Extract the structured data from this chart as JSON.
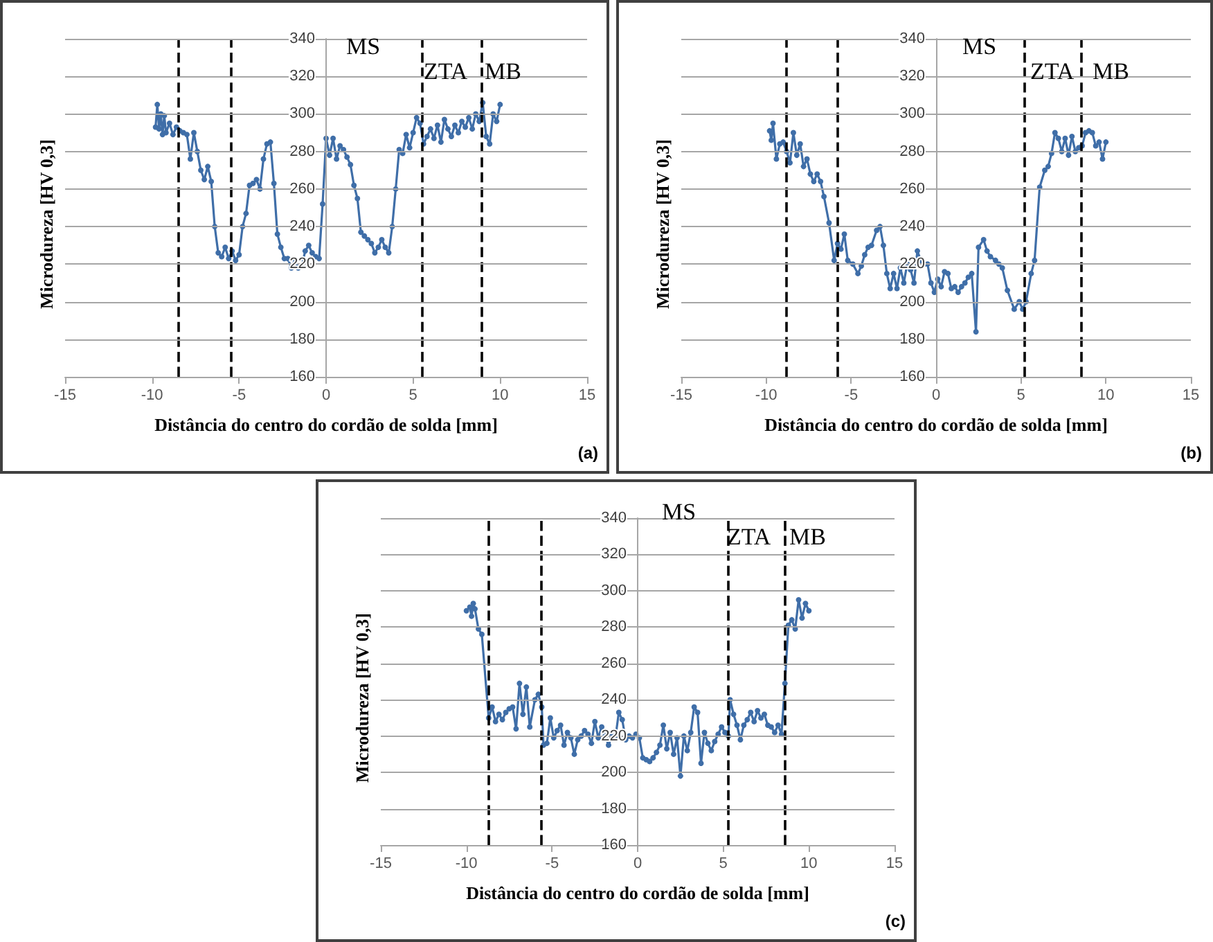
{
  "chart_data": [
    {
      "type": "line",
      "xlabel": "Distância do centro do cordão de solda [mm]",
      "ylabel": "Microdureza [HV 0,3]",
      "xlim": [
        -15,
        15
      ],
      "xticks": [
        -15,
        -10,
        -5,
        0,
        5,
        10,
        15
      ],
      "ylim": [
        160,
        340
      ],
      "yticks": [
        160,
        180,
        200,
        220,
        240,
        260,
        280,
        300,
        320,
        340
      ],
      "grid": "y",
      "marker": "circle",
      "line_style": "solid",
      "series": [
        {
          "color": "#3f6ea8",
          "x": [
            -9.8,
            -9.7,
            -9.6,
            -9.5,
            -9.4,
            -9.3,
            -9.2,
            -9.0,
            -8.8,
            -8.6,
            -8.4,
            -8.2,
            -8.0,
            -7.8,
            -7.6,
            -7.4,
            -7.2,
            -7.0,
            -6.8,
            -6.6,
            -6.4,
            -6.2,
            -6.0,
            -5.8,
            -5.6,
            -5.4,
            -5.2,
            -5.0,
            -4.8,
            -4.6,
            -4.4,
            -4.2,
            -4.0,
            -3.8,
            -3.6,
            -3.4,
            -3.2,
            -3.0,
            -2.8,
            -2.6,
            -2.4,
            -2.2,
            -2.0,
            -1.8,
            -1.6,
            -1.4,
            -1.2,
            -1.0,
            -0.8,
            -0.6,
            -0.4,
            -0.2,
            0.0,
            0.2,
            0.4,
            0.6,
            0.8,
            1.0,
            1.2,
            1.4,
            1.6,
            1.8,
            2.0,
            2.2,
            2.4,
            2.6,
            2.8,
            3.0,
            3.2,
            3.4,
            3.6,
            3.8,
            4.0,
            4.2,
            4.4,
            4.6,
            4.8,
            5.0,
            5.2,
            5.4,
            5.6,
            5.8,
            6.0,
            6.2,
            6.4,
            6.6,
            6.8,
            7.0,
            7.2,
            7.4,
            7.6,
            7.8,
            8.0,
            8.2,
            8.4,
            8.6,
            8.8,
            9.0,
            9.2,
            9.4,
            9.6,
            9.8,
            10.0
          ],
          "values": [
            293,
            305,
            292,
            300,
            289,
            299,
            290,
            295,
            289,
            293,
            291,
            290,
            289,
            276,
            290,
            280,
            270,
            265,
            272,
            264,
            240,
            226,
            224,
            229,
            223,
            227,
            222,
            225,
            240,
            247,
            262,
            263,
            265,
            260,
            276,
            284,
            285,
            263,
            236,
            229,
            223,
            223,
            218,
            222,
            218,
            219,
            227,
            230,
            226,
            224,
            223,
            252,
            287,
            278,
            287,
            276,
            283,
            281,
            277,
            273,
            262,
            255,
            237,
            235,
            233,
            231,
            226,
            229,
            233,
            229,
            226,
            240,
            260,
            281,
            279,
            289,
            282,
            290,
            298,
            295,
            284,
            288,
            292,
            287,
            294,
            285,
            297,
            292,
            288,
            294,
            290,
            296,
            293,
            298,
            292,
            300,
            296,
            306,
            288,
            284,
            300,
            296,
            305
          ]
        }
      ],
      "ref_lines": [
        {
          "axis": "x",
          "value": -8.5,
          "color": "#000000",
          "line_style": "dashed"
        },
        {
          "axis": "x",
          "value": -5.5,
          "color": "#000000",
          "line_style": "dashed"
        },
        {
          "axis": "x",
          "value": 5.5,
          "color": "#000000",
          "line_style": "dashed"
        },
        {
          "axis": "x",
          "value": 8.9,
          "color": "#000000",
          "line_style": "dashed"
        }
      ],
      "annotations": [
        "MS",
        "ZTA",
        "MB",
        "(a)"
      ]
    },
    {
      "type": "line",
      "xlabel": "Distância do centro do cordão de solda [mm]",
      "ylabel": "Microdureza [HV 0,3]",
      "xlim": [
        -15,
        15
      ],
      "xticks": [
        -15,
        -10,
        -5,
        0,
        5,
        10,
        15
      ],
      "ylim": [
        160,
        340
      ],
      "yticks": [
        160,
        180,
        200,
        220,
        240,
        260,
        280,
        300,
        320,
        340
      ],
      "grid": "y",
      "marker": "circle",
      "line_style": "solid",
      "series": [
        {
          "color": "#3f6ea8",
          "x": [
            -9.8,
            -9.7,
            -9.6,
            -9.4,
            -9.2,
            -9.0,
            -8.8,
            -8.6,
            -8.4,
            -8.2,
            -8.0,
            -7.8,
            -7.6,
            -7.4,
            -7.2,
            -7.0,
            -6.8,
            -6.6,
            -6.3,
            -6.0,
            -5.8,
            -5.6,
            -5.4,
            -5.2,
            -4.9,
            -4.6,
            -4.4,
            -4.2,
            -4.0,
            -3.8,
            -3.5,
            -3.3,
            -3.1,
            -2.9,
            -2.7,
            -2.5,
            -2.3,
            -2.1,
            -1.9,
            -1.7,
            -1.5,
            -1.3,
            -1.1,
            -0.9,
            -0.7,
            -0.5,
            -0.3,
            -0.1,
            0.1,
            0.3,
            0.5,
            0.7,
            0.9,
            1.1,
            1.3,
            1.5,
            1.7,
            1.9,
            2.1,
            2.35,
            2.5,
            2.8,
            3.0,
            3.2,
            3.5,
            3.7,
            3.9,
            4.2,
            4.6,
            4.9,
            5.1,
            5.3,
            5.6,
            5.8,
            6.1,
            6.4,
            6.6,
            6.8,
            7.0,
            7.2,
            7.4,
            7.6,
            7.8,
            8.0,
            8.2,
            8.4,
            8.6,
            8.8,
            9.0,
            9.2,
            9.4,
            9.6,
            9.8,
            10.0
          ],
          "values": [
            291,
            286,
            295,
            276,
            284,
            285,
            280,
            274,
            290,
            278,
            284,
            272,
            276,
            268,
            264,
            268,
            264,
            256,
            242,
            222,
            231,
            228,
            236,
            222,
            220,
            215,
            219,
            225,
            229,
            230,
            238,
            240,
            230,
            215,
            207,
            215,
            207,
            218,
            210,
            220,
            217,
            210,
            227,
            222,
            220,
            220,
            210,
            205,
            212,
            208,
            216,
            215,
            207,
            208,
            205,
            208,
            210,
            213,
            215,
            184,
            229,
            233,
            227,
            224,
            222,
            220,
            218,
            206,
            196,
            200,
            196,
            200,
            215,
            222,
            261,
            270,
            272,
            279,
            290,
            287,
            280,
            287,
            278,
            288,
            280,
            282,
            283,
            290,
            291,
            290,
            283,
            285,
            276,
            285
          ]
        }
      ],
      "ref_lines": [
        {
          "axis": "x",
          "value": -8.8,
          "color": "#000000",
          "line_style": "dashed"
        },
        {
          "axis": "x",
          "value": -5.8,
          "color": "#000000",
          "line_style": "dashed"
        },
        {
          "axis": "x",
          "value": 5.2,
          "color": "#000000",
          "line_style": "dashed"
        },
        {
          "axis": "x",
          "value": 8.5,
          "color": "#000000",
          "line_style": "dashed"
        }
      ],
      "annotations": [
        "MS",
        "ZTA",
        "MB",
        "(b)"
      ]
    },
    {
      "type": "line",
      "xlabel": "Distância do centro do cordão de solda [mm]",
      "ylabel": "Microdureza [HV 0,3]",
      "xlim": [
        -15,
        15
      ],
      "xticks": [
        -15,
        -10,
        -5,
        0,
        5,
        10,
        15
      ],
      "ylim": [
        160,
        340
      ],
      "yticks": [
        160,
        180,
        200,
        220,
        240,
        260,
        280,
        300,
        320,
        340
      ],
      "grid": "y",
      "marker": "circle",
      "line_style": "solid",
      "series": [
        {
          "color": "#3f6ea8",
          "x": [
            -10.0,
            -9.8,
            -9.7,
            -9.6,
            -9.5,
            -9.3,
            -9.1,
            -8.7,
            -8.5,
            -8.3,
            -8.1,
            -7.9,
            -7.7,
            -7.5,
            -7.3,
            -7.1,
            -6.9,
            -6.7,
            -6.5,
            -6.3,
            -6.0,
            -5.8,
            -5.6,
            -5.5,
            -5.3,
            -5.1,
            -4.9,
            -4.7,
            -4.5,
            -4.3,
            -4.1,
            -3.9,
            -3.7,
            -3.5,
            -3.3,
            -3.1,
            -2.9,
            -2.7,
            -2.5,
            -2.3,
            -2.1,
            -1.9,
            -1.7,
            -1.5,
            -1.3,
            -1.1,
            -0.9,
            -0.7,
            -0.5,
            -0.3,
            -0.1,
            0.1,
            0.3,
            0.5,
            0.7,
            0.9,
            1.1,
            1.3,
            1.5,
            1.7,
            1.9,
            2.1,
            2.3,
            2.5,
            2.7,
            2.9,
            3.1,
            3.3,
            3.5,
            3.7,
            3.9,
            4.1,
            4.3,
            4.5,
            4.7,
            4.9,
            5.1,
            5.3,
            5.4,
            5.6,
            5.8,
            6.0,
            6.2,
            6.4,
            6.6,
            6.8,
            7.0,
            7.2,
            7.4,
            7.6,
            7.8,
            8.0,
            8.2,
            8.4,
            8.6,
            8.8,
            9.0,
            9.2,
            9.4,
            9.6,
            9.8,
            10.0
          ],
          "values": [
            289,
            291,
            286,
            293,
            290,
            279,
            276,
            230,
            236,
            228,
            232,
            229,
            233,
            235,
            236,
            224,
            249,
            232,
            247,
            225,
            240,
            243,
            236,
            215,
            216,
            230,
            219,
            223,
            226,
            215,
            222,
            219,
            210,
            218,
            220,
            223,
            221,
            216,
            228,
            219,
            225,
            220,
            215,
            220,
            219,
            233,
            229,
            218,
            220,
            219,
            221,
            219,
            208,
            207,
            206,
            208,
            211,
            215,
            226,
            213,
            222,
            210,
            219,
            198,
            220,
            212,
            222,
            236,
            233,
            205,
            222,
            216,
            212,
            217,
            221,
            225,
            222,
            220,
            240,
            232,
            226,
            218,
            226,
            229,
            233,
            228,
            234,
            230,
            232,
            226,
            225,
            222,
            226,
            221,
            249,
            281,
            284,
            279,
            295,
            285,
            293,
            289
          ]
        }
      ],
      "ref_lines": [
        {
          "axis": "x",
          "value": -8.7,
          "color": "#000000",
          "line_style": "dashed"
        },
        {
          "axis": "x",
          "value": -5.6,
          "color": "#000000",
          "line_style": "dashed"
        },
        {
          "axis": "x",
          "value": 5.3,
          "color": "#000000",
          "line_style": "dashed"
        },
        {
          "axis": "x",
          "value": 8.6,
          "color": "#000000",
          "line_style": "dashed"
        }
      ],
      "annotations": [
        "MS",
        "ZTA",
        "MB",
        "(c)"
      ]
    }
  ]
}
